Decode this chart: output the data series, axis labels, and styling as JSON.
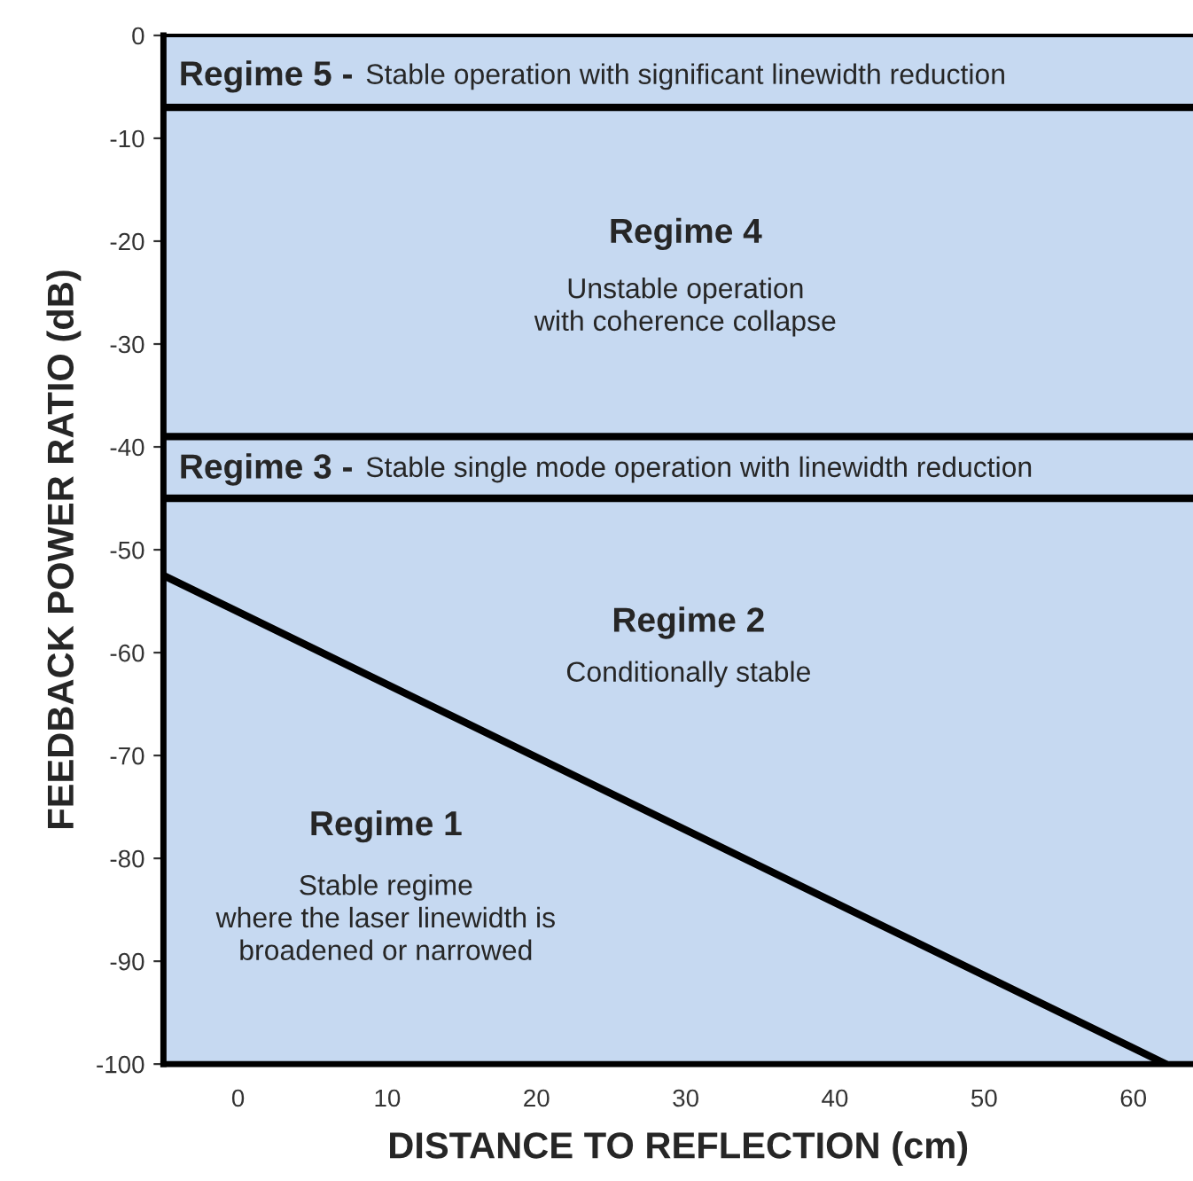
{
  "chart_data": {
    "type": "line",
    "xlabel": "DISTANCE TO REFLECTION (cm)",
    "ylabel": "FEEDBACK POWER RATIO (dB)",
    "series": [
      {
        "color": "#000000",
        "x": [
          -5,
          62.2
        ],
        "values": [
          -52.5,
          -100
        ]
      }
    ],
    "xlim": [
      -5,
      64
    ],
    "xticks": [
      0,
      10,
      20,
      30,
      40,
      50,
      60
    ],
    "ylim": [
      -100,
      0
    ],
    "yticks": [
      -100,
      -90,
      -80,
      -70,
      -60,
      -50,
      -40,
      -30,
      -20,
      -10,
      0
    ],
    "grid": false,
    "legend": false,
    "bands": [
      {
        "axis": "y",
        "from": -100,
        "to": 0,
        "color": "#c6d9f1"
      }
    ],
    "ref_lines": [
      {
        "axis": "y",
        "value": -7,
        "color": "#000000"
      },
      {
        "axis": "y",
        "value": -39,
        "color": "#000000"
      },
      {
        "axis": "y",
        "value": -45,
        "color": "#000000"
      }
    ],
    "annotations": [
      "Regime 5 -",
      "Stable operation with significant linewidth reduction",
      "Regime 4",
      "Unstable operation\nwith coherence collapse",
      "Regime 3 -",
      "Stable single mode operation with linewidth reduction",
      "Regime 2",
      "Conditionally stable",
      "Regime 1",
      "Stable regime\nwhere the laser linewidth is\nbroadened or narrowed"
    ]
  }
}
